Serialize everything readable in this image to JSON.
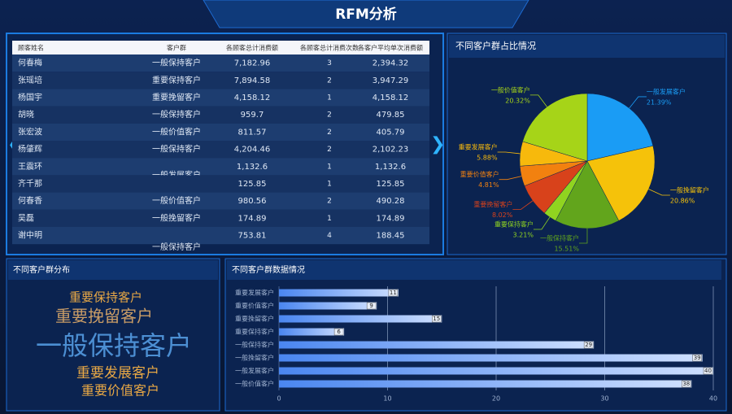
{
  "header": {
    "title": "RFM分析"
  },
  "table": {
    "headers": [
      "顾客姓名",
      "客户群",
      "各顾客总计消费额",
      "各顾客总计消费次数",
      "各客户平均单次消费额"
    ],
    "rows": [
      [
        "何春梅",
        "一般保持客户",
        "7,182.96",
        "3",
        "2,394.32"
      ],
      [
        "张瑶培",
        "重要保持客户",
        "7,894.58",
        "2",
        "3,947.29"
      ],
      [
        "杨国宇",
        "重要挽留客户",
        "4,158.12",
        "1",
        "4,158.12"
      ],
      [
        "胡晓",
        "一般保持客户",
        "959.7",
        "2",
        "479.85"
      ],
      [
        "张宏波",
        "一般价值客户",
        "811.57",
        "2",
        "405.79"
      ],
      [
        "杨肇辉",
        "一般保持客户",
        "4,204.46",
        "2",
        "2,102.23"
      ],
      [
        "王震环",
        "一般发展客户",
        "1,132.6",
        "1",
        "1,132.6"
      ],
      [
        "齐千那",
        null,
        "125.85",
        "1",
        "125.85"
      ],
      [
        "何春香",
        "一般价值客户",
        "980.56",
        "2",
        "490.28"
      ],
      [
        "吴磊",
        "一般挽留客户",
        "174.89",
        "1",
        "174.89"
      ],
      [
        "谢中明",
        "一般保持客户",
        "753.81",
        "4",
        "188.45"
      ]
    ]
  },
  "word_cloud": {
    "title": "不同客户群分布",
    "words": [
      "重要保持客户",
      "重要挽留客户",
      "一般保持客户",
      "重要发展客户",
      "重要价值客户"
    ]
  },
  "chart_data": [
    {
      "type": "pie",
      "title": "不同客户群占比情况",
      "categories": [
        "一般发展客户",
        "一般挽留客户",
        "一般保持客户",
        "重要保持客户",
        "重要挽留客户",
        "重要价值客户",
        "重要发展客户",
        "一般价值客户"
      ],
      "values": [
        21.39,
        20.86,
        15.51,
        3.21,
        8.02,
        4.81,
        5.88,
        20.32
      ],
      "value_labels": [
        "21.39%",
        "20.86%",
        "15.51%",
        "3.21%",
        "8.02%",
        "4.81%",
        "5.88%",
        "20.32%"
      ],
      "colors": [
        "#1a9cf5",
        "#f5c20a",
        "#62a51c",
        "#90d420",
        "#d8421b",
        "#f2810f",
        "#f7b90c",
        "#a6d418"
      ]
    },
    {
      "type": "bar",
      "orientation": "horizontal",
      "title": "不同客户群数据情况",
      "categories": [
        "重要发展客户",
        "重要价值客户",
        "重要挽留客户",
        "重要保持客户",
        "一般保持客户",
        "一般挽留客户",
        "一般发展客户",
        "一般价值客户"
      ],
      "values": [
        11,
        9,
        15,
        6,
        29,
        39,
        40,
        38
      ],
      "xlim": [
        0,
        40
      ],
      "xticks": [
        0,
        10,
        20,
        30,
        40
      ],
      "grid": true,
      "color": "#6ea8ff"
    }
  ]
}
